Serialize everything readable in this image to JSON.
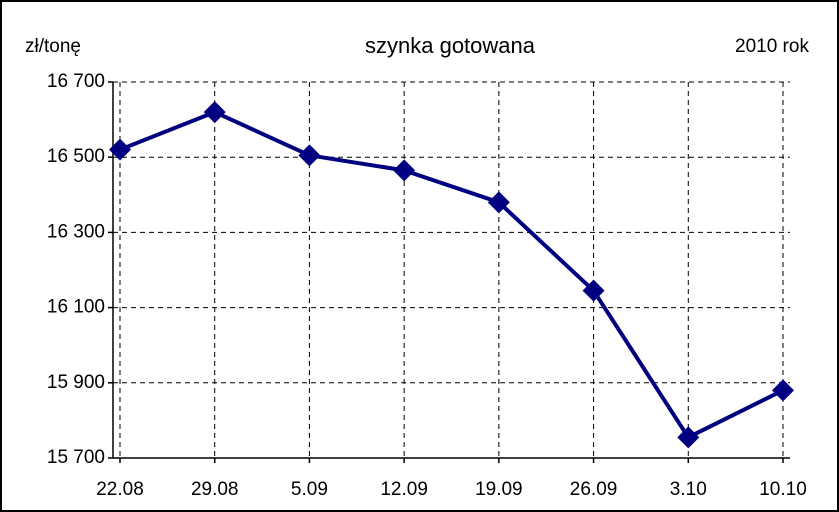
{
  "chart_data": {
    "type": "line",
    "title": "szynka gotowana",
    "y_label": "zł/tonę",
    "annotation": "2010 rok",
    "categories": [
      "22.08",
      "29.08",
      "5.09",
      "12.09",
      "19.09",
      "26.09",
      "3.10",
      "10.10"
    ],
    "series": [
      {
        "name": "szynka gotowana",
        "color": "#000080",
        "values": [
          16520,
          16620,
          16505,
          16465,
          16380,
          16145,
          15755,
          15880
        ]
      }
    ],
    "ylim": [
      15700,
      16700
    ],
    "yticks": [
      {
        "value": 15700,
        "label": "15 700"
      },
      {
        "value": 15900,
        "label": "15 900"
      },
      {
        "value": 16100,
        "label": "16 100"
      },
      {
        "value": 16300,
        "label": "16 300"
      },
      {
        "value": 16500,
        "label": "16 500"
      },
      {
        "value": 16700,
        "label": "16 700"
      }
    ],
    "grid": true
  }
}
